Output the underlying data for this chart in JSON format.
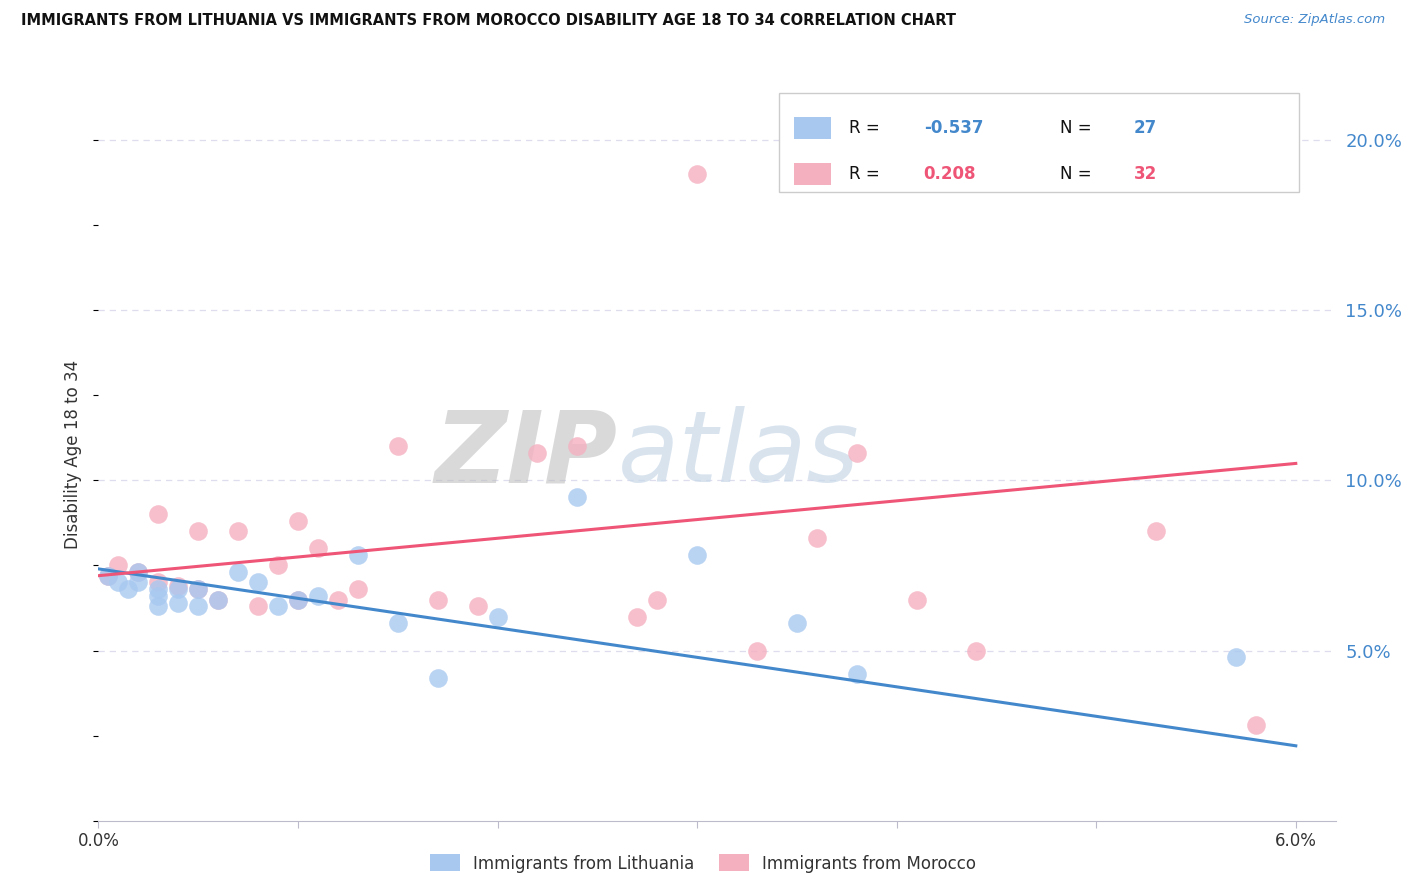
{
  "title": "IMMIGRANTS FROM LITHUANIA VS IMMIGRANTS FROM MOROCCO DISABILITY AGE 18 TO 34 CORRELATION CHART",
  "source": "Source: ZipAtlas.com",
  "ylabel": "Disability Age 18 to 34",
  "xlim": [
    0.0,
    0.062
  ],
  "ylim": [
    0.0,
    0.215
  ],
  "yticks_right": [
    0.05,
    0.1,
    0.15,
    0.2
  ],
  "ytick_labels_right": [
    "5.0%",
    "10.0%",
    "15.0%",
    "20.0%"
  ],
  "xticks": [
    0.0,
    0.01,
    0.02,
    0.03,
    0.04,
    0.05,
    0.06
  ],
  "xtick_labels": [
    "0.0%",
    "",
    "",
    "",
    "",
    "",
    "6.0%"
  ],
  "legend_R1": "-0.537",
  "legend_N1": "27",
  "legend_R2": "0.208",
  "legend_N2": "32",
  "color_lithuania": "#a8c8f0",
  "color_morocco": "#f5b0c0",
  "line_color_lithuania": "#4488cc",
  "line_color_morocco": "#ee5577",
  "watermark_top": "ZIP",
  "watermark_bot": "atlas",
  "watermark_color": "#c8d8e8",
  "grid_color": "#ddddee",
  "title_color": "#111111",
  "source_color": "#4488cc",
  "axis_label_color": "#333333",
  "tick_color": "#333333",
  "right_tick_color": "#4488cc",
  "legend_border_color": "#cccccc",
  "lit_trend_x0": 0.0,
  "lit_trend_y0": 0.074,
  "lit_trend_x1": 0.06,
  "lit_trend_y1": 0.022,
  "mor_trend_x0": 0.0,
  "mor_trend_y0": 0.072,
  "mor_trend_x1": 0.06,
  "mor_trend_y1": 0.105,
  "lithuania_x": [
    0.0005,
    0.001,
    0.0015,
    0.002,
    0.002,
    0.003,
    0.003,
    0.003,
    0.004,
    0.004,
    0.005,
    0.005,
    0.006,
    0.007,
    0.008,
    0.009,
    0.01,
    0.011,
    0.013,
    0.015,
    0.017,
    0.02,
    0.024,
    0.03,
    0.035,
    0.038,
    0.057
  ],
  "lithuania_y": [
    0.072,
    0.07,
    0.068,
    0.073,
    0.07,
    0.068,
    0.066,
    0.063,
    0.064,
    0.068,
    0.063,
    0.068,
    0.065,
    0.073,
    0.07,
    0.063,
    0.065,
    0.066,
    0.078,
    0.058,
    0.042,
    0.06,
    0.095,
    0.078,
    0.058,
    0.043,
    0.048
  ],
  "morocco_x": [
    0.0005,
    0.001,
    0.002,
    0.003,
    0.003,
    0.004,
    0.005,
    0.005,
    0.006,
    0.007,
    0.008,
    0.009,
    0.01,
    0.01,
    0.011,
    0.012,
    0.013,
    0.015,
    0.017,
    0.019,
    0.022,
    0.024,
    0.027,
    0.028,
    0.03,
    0.033,
    0.036,
    0.038,
    0.041,
    0.044,
    0.053,
    0.058
  ],
  "morocco_y": [
    0.072,
    0.075,
    0.073,
    0.09,
    0.07,
    0.069,
    0.085,
    0.068,
    0.065,
    0.085,
    0.063,
    0.075,
    0.088,
    0.065,
    0.08,
    0.065,
    0.068,
    0.11,
    0.065,
    0.063,
    0.108,
    0.11,
    0.06,
    0.065,
    0.19,
    0.05,
    0.083,
    0.108,
    0.065,
    0.05,
    0.085,
    0.028
  ]
}
